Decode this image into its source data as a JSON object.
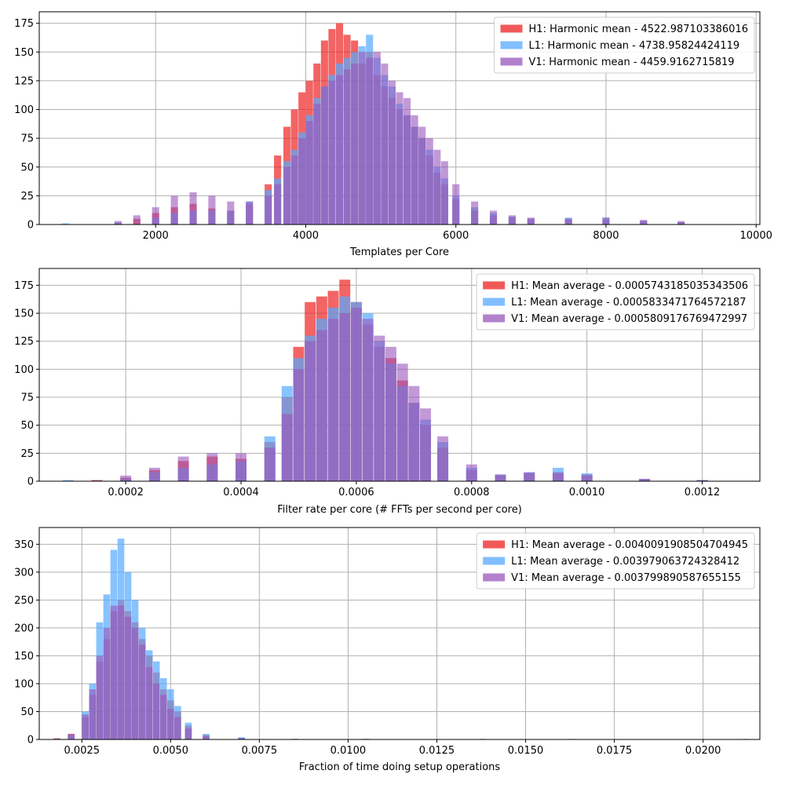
{
  "chart_data": [
    {
      "type": "bar",
      "xlabel": "Templates per Core",
      "ylabel": "",
      "xlim": [
        450,
        10050
      ],
      "ylim": [
        0,
        185
      ],
      "xticks": [
        2000,
        4000,
        6000,
        8000,
        10000
      ],
      "yticks": [
        0,
        25,
        50,
        75,
        100,
        125,
        150,
        175
      ],
      "grid": true,
      "legend_position": "top-right",
      "colors": {
        "H1": "#ee2222",
        "L1": "#55aaff",
        "V1": "#9955bb"
      },
      "series": [
        {
          "name": "H1: Harmonic mean  - 4522.987103386016",
          "x": [
            1500,
            1750,
            2000,
            2250,
            2500,
            2750,
            3000,
            3250,
            3500,
            3625,
            3750,
            3850,
            3950,
            4050,
            4150,
            4250,
            4350,
            4450,
            4550,
            4650,
            4750,
            4850,
            4950,
            5050,
            5150,
            5250,
            5350,
            5450,
            5550,
            5650,
            5750,
            5850,
            6000,
            6250,
            6500,
            6750,
            7000,
            7500,
            8000,
            8500,
            9000
          ],
          "values": [
            1,
            5,
            10,
            15,
            18,
            14,
            12,
            18,
            35,
            60,
            85,
            100,
            115,
            125,
            140,
            160,
            170,
            175,
            165,
            160,
            140,
            150,
            130,
            120,
            110,
            100,
            95,
            85,
            75,
            60,
            45,
            35,
            22,
            12,
            8,
            6,
            5,
            5,
            4,
            3,
            2
          ]
        },
        {
          "name": "L1: Harmonic mean  - 4738.95824424119",
          "x": [
            800,
            1500,
            2000,
            2250,
            2500,
            2750,
            3000,
            3250,
            3500,
            3625,
            3750,
            3850,
            3950,
            4050,
            4150,
            4250,
            4350,
            4450,
            4550,
            4650,
            4750,
            4850,
            4950,
            5050,
            5150,
            5250,
            5350,
            5450,
            5550,
            5650,
            5750,
            5850,
            6000,
            6250,
            6500,
            6750,
            7000,
            7500,
            8000,
            8500,
            9000
          ],
          "values": [
            1,
            2,
            6,
            10,
            12,
            12,
            12,
            20,
            30,
            40,
            55,
            65,
            80,
            95,
            110,
            120,
            130,
            140,
            145,
            150,
            155,
            165,
            145,
            130,
            120,
            105,
            95,
            85,
            75,
            65,
            50,
            40,
            25,
            15,
            10,
            7,
            5,
            6,
            6,
            3,
            2
          ]
        },
        {
          "name": "V1: Harmonic mean  - 4459.9162715819",
          "x": [
            1500,
            1750,
            2000,
            2250,
            2500,
            2750,
            3000,
            3250,
            3500,
            3625,
            3750,
            3850,
            3950,
            4050,
            4150,
            4250,
            4350,
            4450,
            4550,
            4650,
            4750,
            4850,
            4950,
            5050,
            5150,
            5250,
            5350,
            5450,
            5550,
            5650,
            5750,
            5850,
            6000,
            6250,
            6500,
            6750,
            7000,
            7500,
            8000,
            8500,
            9000
          ],
          "values": [
            3,
            8,
            15,
            25,
            28,
            25,
            20,
            20,
            25,
            35,
            50,
            60,
            75,
            90,
            105,
            120,
            125,
            130,
            135,
            140,
            150,
            145,
            150,
            140,
            125,
            115,
            110,
            95,
            85,
            75,
            65,
            55,
            35,
            20,
            12,
            8,
            6,
            5,
            6,
            4,
            3
          ]
        }
      ]
    },
    {
      "type": "bar",
      "xlabel": "Filter rate per core (# FFTs per second per core)",
      "ylabel": "",
      "xlim": [
        5e-05,
        0.0013
      ],
      "ylim": [
        0,
        190
      ],
      "xticks": [
        0.0002,
        0.0004,
        0.0006,
        0.0008,
        0.001,
        0.0012
      ],
      "xtick_labels": [
        "0.0002",
        "0.0004",
        "0.0006",
        "0.0008",
        "0.0010",
        "0.0012"
      ],
      "yticks": [
        0,
        25,
        50,
        75,
        100,
        125,
        150,
        175
      ],
      "grid": true,
      "legend_position": "top-right",
      "colors": {
        "H1": "#ee2222",
        "L1": "#55aaff",
        "V1": "#9955bb"
      },
      "series": [
        {
          "name": "H1: Mean average - 0.0005743185035343506",
          "x": [
            0.00015,
            0.0002,
            0.00025,
            0.0003,
            0.00035,
            0.0004,
            0.00045,
            0.00048,
            0.0005,
            0.00052,
            0.00054,
            0.00056,
            0.00058,
            0.0006,
            0.00062,
            0.00064,
            0.00066,
            0.00068,
            0.0007,
            0.00072,
            0.00075,
            0.0008,
            0.00085,
            0.0009,
            0.00095,
            0.001,
            0.0011,
            0.0012
          ],
          "values": [
            1,
            3,
            10,
            18,
            22,
            20,
            35,
            75,
            120,
            160,
            165,
            170,
            180,
            160,
            140,
            120,
            110,
            90,
            70,
            50,
            30,
            10,
            5,
            7,
            7,
            5,
            2,
            1
          ]
        },
        {
          "name": "L1: Mean average - 0.0005833471764572187",
          "x": [
            0.0001,
            0.0002,
            0.00025,
            0.0003,
            0.00035,
            0.0004,
            0.00045,
            0.00048,
            0.0005,
            0.00052,
            0.00054,
            0.00056,
            0.00058,
            0.0006,
            0.00062,
            0.00064,
            0.00066,
            0.00068,
            0.0007,
            0.00072,
            0.00075,
            0.0008,
            0.00085,
            0.0009,
            0.00095,
            0.001,
            0.0011,
            0.0012
          ],
          "values": [
            1,
            2,
            8,
            12,
            15,
            18,
            40,
            85,
            110,
            130,
            145,
            155,
            165,
            160,
            150,
            125,
            105,
            85,
            70,
            55,
            35,
            12,
            6,
            8,
            12,
            7,
            2,
            1
          ]
        },
        {
          "name": "V1: Mean average - 0.0005809176769472997",
          "x": [
            0.00015,
            0.0002,
            0.00025,
            0.0003,
            0.00035,
            0.0004,
            0.00045,
            0.00048,
            0.0005,
            0.00052,
            0.00054,
            0.00056,
            0.00058,
            0.0006,
            0.00062,
            0.00064,
            0.00066,
            0.00068,
            0.0007,
            0.00072,
            0.00075,
            0.0008,
            0.00085,
            0.0009,
            0.00095,
            0.001,
            0.0011,
            0.0012
          ],
          "values": [
            1,
            5,
            12,
            22,
            25,
            25,
            30,
            60,
            100,
            125,
            135,
            145,
            150,
            155,
            145,
            130,
            120,
            105,
            85,
            65,
            40,
            15,
            6,
            8,
            8,
            6,
            2,
            1
          ]
        }
      ]
    },
    {
      "type": "bar",
      "xlabel": "Fraction of time doing setup operations",
      "ylabel": "",
      "xlim": [
        0.0013,
        0.0216
      ],
      "ylim": [
        0,
        380
      ],
      "xticks": [
        0.0025,
        0.005,
        0.0075,
        0.01,
        0.0125,
        0.015,
        0.0175,
        0.02
      ],
      "xtick_labels": [
        "0.0025",
        "0.0050",
        "0.0075",
        "0.0100",
        "0.0125",
        "0.0150",
        "0.0175",
        "0.0200"
      ],
      "yticks": [
        0,
        50,
        100,
        150,
        200,
        250,
        300,
        350
      ],
      "grid": true,
      "legend_position": "top-right",
      "colors": {
        "H1": "#ee2222",
        "L1": "#55aaff",
        "V1": "#9955bb"
      },
      "series": [
        {
          "name": "H1: Mean average - 0.0040091908504704945",
          "x": [
            0.0018,
            0.0022,
            0.0026,
            0.0028,
            0.003,
            0.0032,
            0.0034,
            0.0036,
            0.0038,
            0.004,
            0.0042,
            0.0044,
            0.0046,
            0.0048,
            0.005,
            0.0052,
            0.0055,
            0.006,
            0.007,
            0.0085,
            0.0105,
            0.0138
          ],
          "values": [
            2,
            10,
            40,
            80,
            140,
            180,
            230,
            250,
            230,
            210,
            180,
            150,
            120,
            90,
            70,
            50,
            25,
            8,
            3,
            1,
            1,
            1
          ]
        },
        {
          "name": "L1: Mean average - 0.003979063724328412",
          "x": [
            0.0018,
            0.0022,
            0.0026,
            0.0028,
            0.003,
            0.0032,
            0.0034,
            0.0036,
            0.0038,
            0.004,
            0.0042,
            0.0044,
            0.0046,
            0.0048,
            0.005,
            0.0052,
            0.0055,
            0.006,
            0.007,
            0.0085,
            0.0105,
            0.0163,
            0.0212
          ],
          "values": [
            1,
            8,
            50,
            100,
            210,
            260,
            340,
            360,
            300,
            250,
            200,
            160,
            140,
            110,
            90,
            60,
            30,
            10,
            4,
            1,
            1,
            1,
            1
          ]
        },
        {
          "name": "V1: Mean average - 0.003799890587655155",
          "x": [
            0.0018,
            0.0022,
            0.0026,
            0.0028,
            0.003,
            0.0032,
            0.0034,
            0.0036,
            0.0038,
            0.004,
            0.0042,
            0.0044,
            0.0046,
            0.0048,
            0.005,
            0.0052,
            0.0055,
            0.006,
            0.007
          ],
          "values": [
            2,
            10,
            45,
            90,
            150,
            200,
            240,
            240,
            220,
            200,
            170,
            130,
            100,
            80,
            55,
            40,
            20,
            6,
            2
          ]
        }
      ]
    }
  ]
}
